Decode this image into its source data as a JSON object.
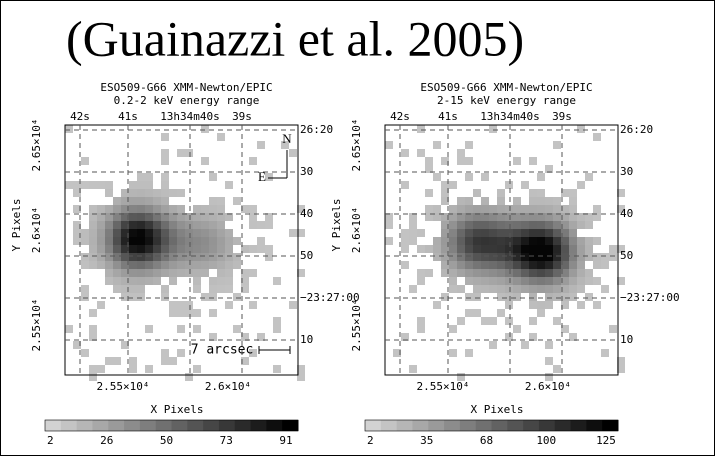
{
  "title": "(Guainazzi et al. 2005)",
  "panels": [
    {
      "title": [
        "ESO509-G66 XMM-Newton/EPIC",
        "0.2-2 keV energy range"
      ],
      "top_ticks": [
        "42s",
        "41s",
        "13h34m40s",
        "39s"
      ],
      "right_ticks": [
        "26:20",
        "30",
        "40",
        "50",
        "−23:27:00",
        "10"
      ],
      "left_ticks": [
        "2.65×10⁴",
        "2.6×10⁴",
        "2.55×10⁴"
      ],
      "bottom_ticks": [
        "2.55×10⁴",
        "2.6×10⁴"
      ],
      "x_label": "X Pixels",
      "y_label": "Y Pixels",
      "colorbar_ticks": [
        "2",
        "26",
        "50",
        "73",
        "91"
      ],
      "annotations": [
        "N",
        "E",
        "7 arcsec"
      ]
    },
    {
      "title": [
        "ESO509-G66 XMM-Newton/EPIC",
        "2-15 keV energy range"
      ],
      "top_ticks": [
        "42s",
        "41s",
        "13h34m40s",
        "39s"
      ],
      "right_ticks": [
        "26:20",
        "30",
        "40",
        "50",
        "−23:27:00",
        "10"
      ],
      "left_ticks": [
        "2.65×10⁴",
        "2.6×10⁴",
        "2.55×10⁴"
      ],
      "bottom_ticks": [
        "2.55×10⁴",
        "2.6×10⁴"
      ],
      "x_label": "X Pixels",
      "y_label": "Y Pixels",
      "colorbar_ticks": [
        "2",
        "35",
        "68",
        "100",
        "125"
      ]
    }
  ]
}
